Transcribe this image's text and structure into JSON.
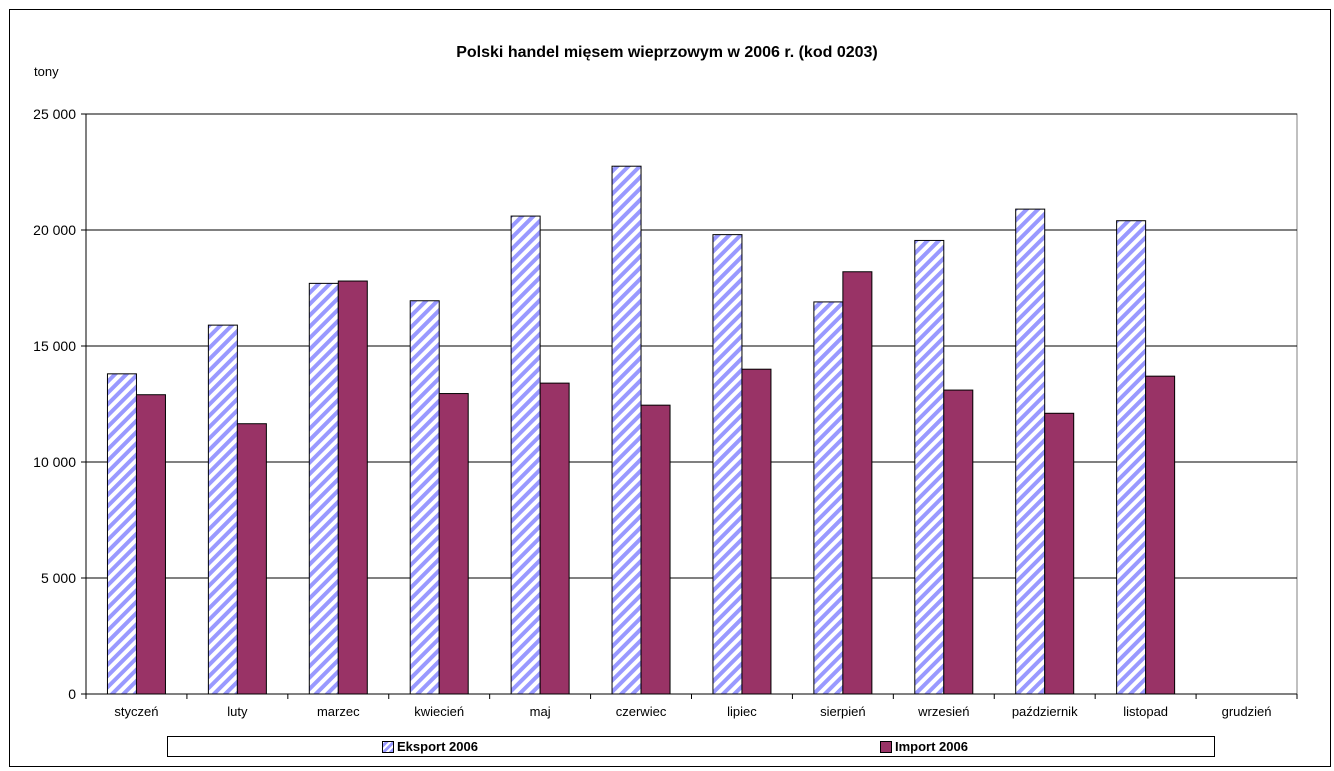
{
  "chart_data": {
    "type": "bar",
    "title": "Polski handel mięsem wieprzowym w 2006 r. (kod 0203)",
    "ylabel": "tony",
    "xlabel": "",
    "ylim": [
      0,
      25000
    ],
    "yticks": [
      0,
      5000,
      10000,
      15000,
      20000,
      25000
    ],
    "ytick_labels": [
      "0",
      "5 000",
      "10 000",
      "15 000",
      "20 000",
      "25 000"
    ],
    "grid": true,
    "legend_position": "bottom",
    "categories": [
      "styczeń",
      "luty",
      "marzec",
      "kwiecień",
      "maj",
      "czerwiec",
      "lipiec",
      "sierpień",
      "wrzesień",
      "październik",
      "listopad",
      "grudzień"
    ],
    "series": [
      {
        "name": "Eksport 2006",
        "color": "#9999ff",
        "pattern": "diagonal-stripes",
        "values": [
          13800,
          15900,
          17700,
          16950,
          20600,
          22750,
          19800,
          16900,
          19550,
          20900,
          20400,
          null
        ]
      },
      {
        "name": "Import 2006",
        "color": "#993366",
        "pattern": "solid",
        "values": [
          12900,
          11650,
          17800,
          12950,
          13400,
          12450,
          14000,
          18200,
          13100,
          12100,
          13700,
          null
        ]
      }
    ]
  }
}
